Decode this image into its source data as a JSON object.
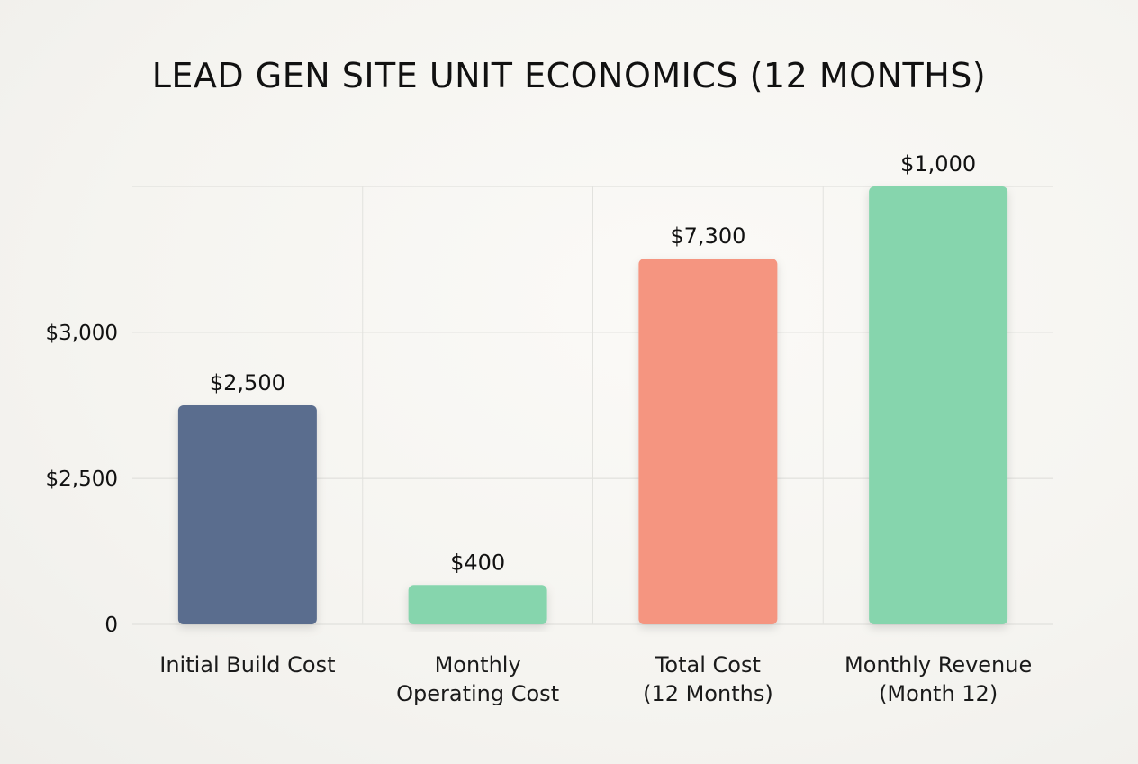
{
  "chart_data": {
    "type": "bar",
    "title": "LEAD GEN SITE UNIT ECONOMICS (12 MONTHS)",
    "xlabel": "",
    "ylabel": "",
    "categories": [
      [
        "Initial Build Cost"
      ],
      [
        "Monthly",
        "Operating Cost"
      ],
      [
        "Total Cost",
        "(12 Months)"
      ],
      [
        "Monthly Revenue",
        "(Month 12)"
      ]
    ],
    "values": [
      2500,
      400,
      7300,
      1000
    ],
    "value_labels": [
      "$2,500",
      "$400",
      "$7,300",
      "$1,000"
    ],
    "bar_levels": [
      0.5,
      0.09,
      0.835,
      1.0
    ],
    "y_ticks": [
      {
        "label": "0",
        "level": 0.0
      },
      {
        "label": "$2,500",
        "level": 0.333
      },
      {
        "label": "$3,000",
        "level": 0.667
      }
    ],
    "colors": [
      "#5a6d8e",
      "#86d5ad",
      "#f59580",
      "#86d5ad"
    ],
    "grid": true,
    "legend": "none"
  }
}
